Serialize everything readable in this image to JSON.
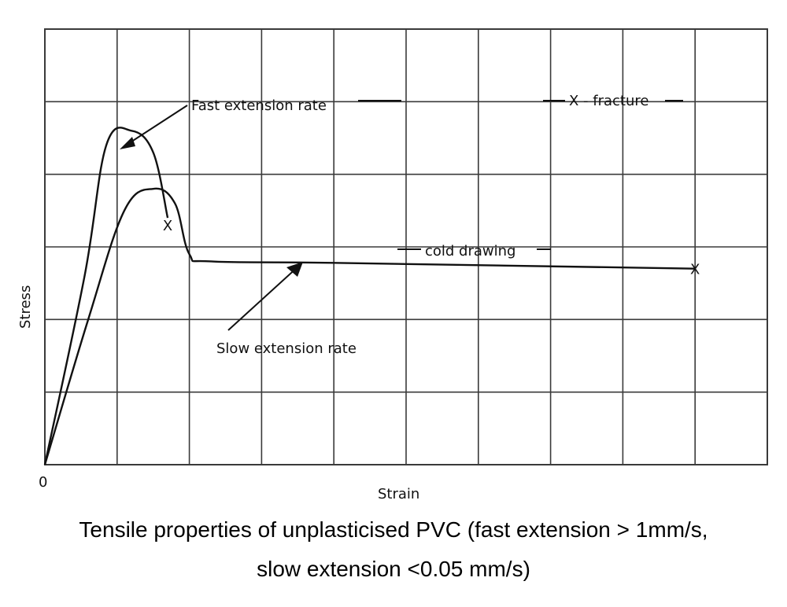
{
  "chart_data": {
    "type": "line",
    "xlabel": "Strain",
    "ylabel": "Stress",
    "origin_label": "0",
    "grid": true,
    "x_ticks_labeled": false,
    "y_ticks_labeled": false,
    "series": [
      {
        "name": "Fast extension rate",
        "end_marker": "X",
        "points": [
          [
            0,
            0
          ],
          [
            0.55,
            2.6
          ],
          [
            0.85,
            4.4
          ],
          [
            1.2,
            4.6
          ],
          [
            1.5,
            4.3
          ],
          [
            1.7,
            3.4
          ]
        ]
      },
      {
        "name": "Slow extension rate",
        "end_marker": "X",
        "points": [
          [
            0,
            0
          ],
          [
            0.6,
            2.0
          ],
          [
            1.1,
            3.5
          ],
          [
            1.5,
            3.8
          ],
          [
            1.8,
            3.6
          ],
          [
            2.0,
            2.9
          ],
          [
            2.3,
            2.8
          ],
          [
            4.0,
            2.78
          ],
          [
            9.0,
            2.7
          ]
        ]
      }
    ],
    "annotations": [
      "Fast extension rate",
      "X - fracture",
      "cold drawing",
      "Slow extension rate"
    ]
  },
  "caption": {
    "line1": "Tensile properties of unplasticised PVC (fast extension > 1mm/s,",
    "line2": "slow extension <0.05 mm/s)"
  },
  "colors": {
    "ink": "#111111",
    "grid": "#3a3a3a"
  }
}
